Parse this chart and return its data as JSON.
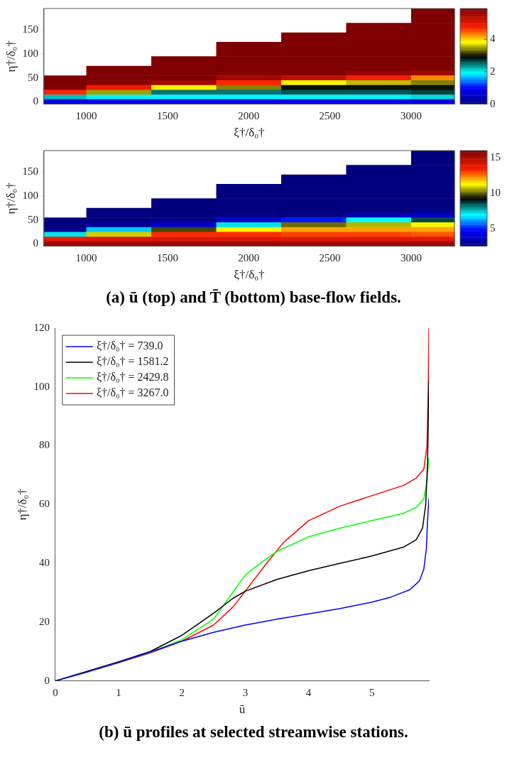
{
  "chart_data": [
    {
      "type": "heatmap",
      "xlabel": "ξ†/δ₀†",
      "ylabel": "η†/δ₀†",
      "x": [
        800,
        1200,
        1600,
        2000,
        2400,
        2800,
        3200
      ],
      "y_categories": [
        null,
        null,
        null,
        null,
        "150",
        null,
        null,
        null,
        null,
        "100",
        null,
        null,
        null,
        null,
        "50",
        null,
        null,
        null,
        null,
        "0"
      ],
      "xlim": [
        739,
        3267
      ],
      "xticks": [
        1000,
        1500,
        2000,
        2500,
        3000
      ],
      "clim": [
        0,
        5.9
      ],
      "cticks": [
        0,
        2,
        4
      ],
      "cells": [
        [
          null,
          null,
          null,
          null,
          null,
          null,
          5.9
        ],
        [
          null,
          null,
          null,
          null,
          null,
          null,
          5.9
        ],
        [
          null,
          null,
          null,
          null,
          null,
          null,
          5.9
        ],
        [
          null,
          null,
          null,
          null,
          null,
          5.9,
          5.9
        ],
        [
          null,
          null,
          null,
          null,
          null,
          5.9,
          5.9
        ],
        [
          null,
          null,
          null,
          null,
          5.9,
          5.9,
          5.9
        ],
        [
          null,
          null,
          null,
          null,
          5.9,
          5.9,
          5.9
        ],
        [
          null,
          null,
          null,
          5.9,
          5.9,
          5.9,
          5.9
        ],
        [
          null,
          null,
          null,
          5.9,
          5.9,
          5.9,
          5.9
        ],
        [
          null,
          null,
          null,
          5.9,
          5.9,
          5.9,
          5.9
        ],
        [
          null,
          null,
          5.9,
          5.9,
          5.9,
          5.9,
          5.9
        ],
        [
          null,
          null,
          5.9,
          5.9,
          5.9,
          5.9,
          5.9
        ],
        [
          null,
          5.9,
          5.9,
          5.9,
          5.9,
          5.89,
          5.88
        ],
        [
          null,
          5.9,
          5.9,
          5.85,
          5.85,
          5.7,
          5.6
        ],
        [
          5.9,
          5.9,
          5.88,
          5.6,
          5.3,
          4.8,
          4.3
        ],
        [
          5.9,
          5.8,
          5.6,
          4.7,
          3.8,
          3.6,
          3.4
        ],
        [
          5.85,
          4.9,
          3.9,
          3.4,
          3.0,
          3.0,
          3.0
        ],
        [
          4.7,
          3.5,
          2.5,
          2.5,
          2.6,
          2.6,
          2.7
        ],
        [
          2.2,
          2.0,
          1.9,
          1.9,
          2.0,
          2.0,
          2.1
        ],
        [
          0.8,
          0.8,
          0.8,
          0.8,
          0.8,
          0.8,
          0.8
        ]
      ]
    },
    {
      "type": "heatmap",
      "xlabel": "ξ†/δ₀†",
      "ylabel": "η†/δ₀†",
      "x": [
        800,
        1200,
        1600,
        2000,
        2400,
        2800,
        3200
      ],
      "y_categories": [
        null,
        null,
        null,
        null,
        "150",
        null,
        null,
        null,
        null,
        "100",
        null,
        null,
        null,
        null,
        "50",
        null,
        null,
        null,
        null,
        "0"
      ],
      "xlim": [
        739,
        3267
      ],
      "xticks": [
        1000,
        1500,
        2000,
        2500,
        3000
      ],
      "clim": [
        2.5,
        16
      ],
      "cticks": [
        5,
        10,
        15
      ],
      "annotations": [
        "(a) ū (top) and T̄ (bottom) base-flow fields."
      ],
      "cells": [
        [
          null,
          null,
          null,
          null,
          null,
          null,
          2.5
        ],
        [
          null,
          null,
          null,
          null,
          null,
          null,
          2.5
        ],
        [
          null,
          null,
          null,
          null,
          null,
          null,
          2.5
        ],
        [
          null,
          null,
          null,
          null,
          null,
          2.5,
          2.5
        ],
        [
          null,
          null,
          null,
          null,
          null,
          2.5,
          2.5
        ],
        [
          null,
          null,
          null,
          null,
          2.5,
          2.5,
          2.5
        ],
        [
          null,
          null,
          null,
          null,
          2.5,
          2.5,
          2.5
        ],
        [
          null,
          null,
          null,
          2.5,
          2.5,
          2.5,
          2.5
        ],
        [
          null,
          null,
          null,
          2.5,
          2.5,
          2.5,
          2.5
        ],
        [
          null,
          null,
          null,
          2.5,
          2.5,
          2.5,
          2.5
        ],
        [
          null,
          null,
          2.5,
          2.5,
          2.5,
          2.5,
          2.5
        ],
        [
          null,
          null,
          2.5,
          2.5,
          2.5,
          2.5,
          2.5
        ],
        [
          null,
          2.5,
          2.5,
          2.5,
          2.5,
          2.5,
          2.6
        ],
        [
          null,
          2.5,
          2.5,
          2.7,
          2.7,
          3.4,
          3.8
        ],
        [
          2.5,
          2.5,
          2.6,
          3.8,
          5.0,
          6.9,
          8.6
        ],
        [
          2.5,
          2.9,
          3.8,
          7.2,
          10.1,
          10.7,
          11.2
        ],
        [
          2.7,
          6.5,
          9.8,
          11.2,
          12.1,
          12.1,
          12.1
        ],
        [
          7.2,
          10.9,
          13.2,
          13.2,
          13.0,
          13.0,
          12.8
        ],
        [
          13.7,
          14.0,
          14.1,
          14.1,
          14.0,
          14.0,
          13.9
        ],
        [
          15.3,
          15.3,
          15.3,
          15.3,
          15.3,
          15.3,
          15.3
        ]
      ]
    },
    {
      "type": "line",
      "xlabel": "ū",
      "ylabel": "η†/δ₀†",
      "xlim": [
        0,
        5.9
      ],
      "ylim": [
        0,
        120
      ],
      "xticks": [
        0,
        1,
        2,
        3,
        4,
        5
      ],
      "yticks": [
        0,
        20,
        40,
        60,
        80,
        100,
        120
      ],
      "legend": "top left",
      "annotations": [
        "(b) ū profiles at selected streamwise stations."
      ],
      "series": [
        {
          "name": "ξ†/δ₀† = 739.0",
          "color": "#0000ff",
          "x": [
            0,
            0.5,
            1,
            1.5,
            2,
            2.5,
            3,
            3.5,
            4,
            4.5,
            5,
            5.3,
            5.6,
            5.75,
            5.82,
            5.86,
            5.88,
            5.9
          ],
          "values": [
            0,
            3,
            6.3,
            9.8,
            13.5,
            16.5,
            19,
            21,
            22.8,
            24.6,
            26.8,
            28.5,
            31,
            34,
            38,
            45,
            55,
            62
          ]
        },
        {
          "name": "ξ†/δ₀† = 1581.2",
          "color": "#000000",
          "x": [
            0,
            1,
            1.5,
            2,
            2.5,
            2.8,
            3,
            3.5,
            4,
            4.5,
            5,
            5.5,
            5.7,
            5.8,
            5.85,
            5.88,
            5.9
          ],
          "values": [
            0,
            6.5,
            10,
            15.5,
            23,
            28,
            30.5,
            34.5,
            37.5,
            40,
            42.5,
            45.5,
            48,
            52,
            60,
            75,
            102
          ]
        },
        {
          "name": "ξ†/δ₀† = 2429.8",
          "color": "#00ff00",
          "x": [
            0,
            1,
            1.5,
            2,
            2.5,
            2.8,
            3,
            3.3,
            3.5,
            4,
            4.5,
            5,
            5.5,
            5.7,
            5.82,
            5.87,
            5.9
          ],
          "values": [
            0,
            6.3,
            9.7,
            14,
            21,
            30,
            36,
            41,
            44,
            49,
            52,
            54.5,
            57,
            59,
            62,
            68,
            76
          ]
        },
        {
          "name": "ξ†/δ₀† = 3267.0",
          "color": "#ff0000",
          "x": [
            0,
            1,
            1.5,
            2,
            2.5,
            2.8,
            3,
            3.3,
            3.6,
            4,
            4.5,
            5,
            5.5,
            5.7,
            5.82,
            5.87,
            5.89,
            5.9
          ],
          "values": [
            0,
            6.2,
            9.5,
            13.5,
            19,
            25,
            30.5,
            39,
            47,
            54.5,
            59.5,
            63,
            66.5,
            69,
            72,
            80,
            100,
            120
          ]
        }
      ]
    }
  ]
}
